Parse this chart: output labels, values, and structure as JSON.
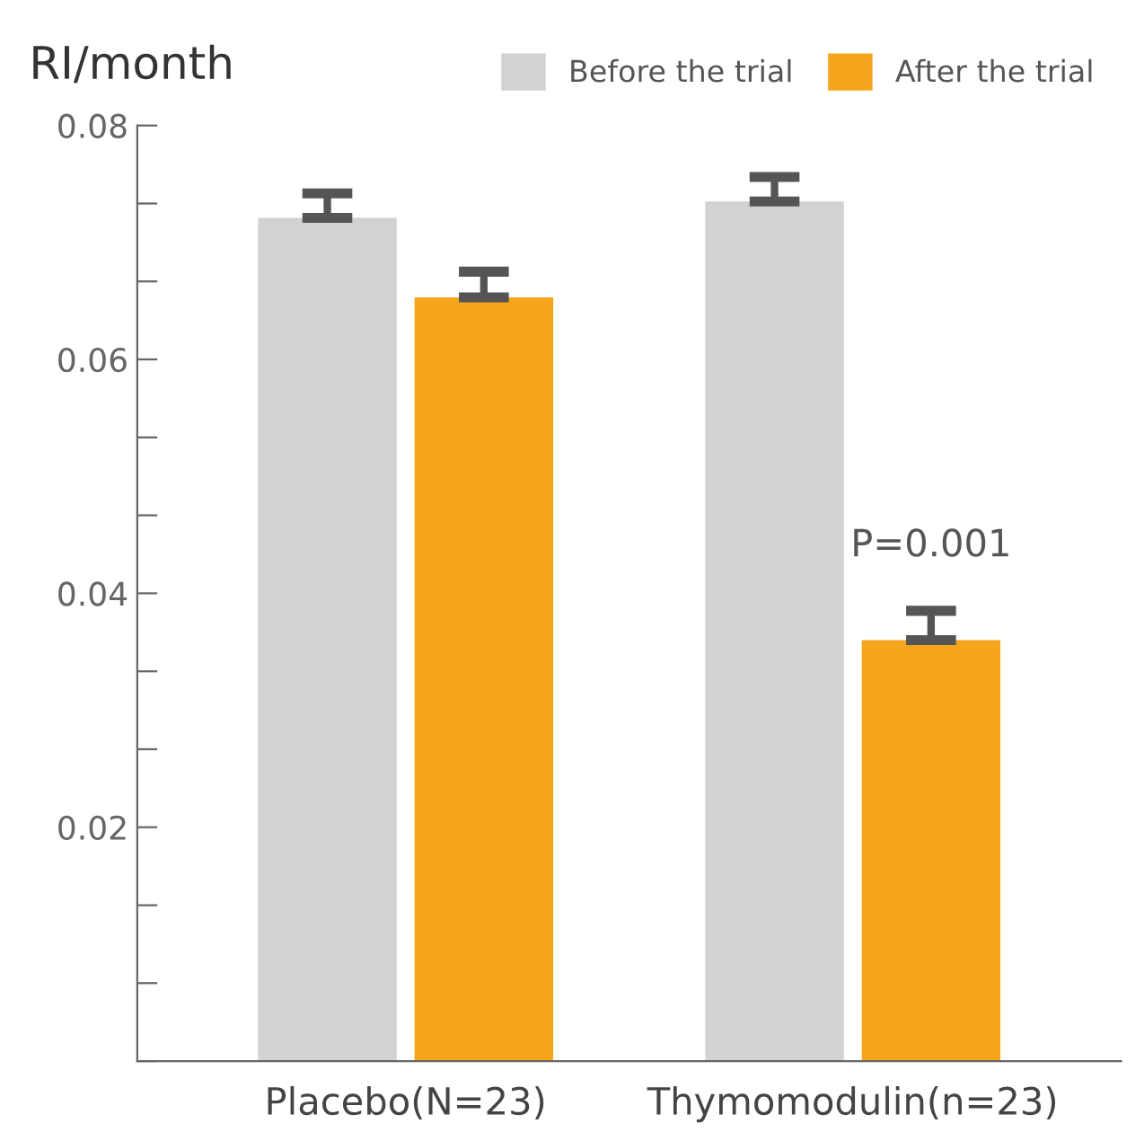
{
  "chart_data": {
    "type": "bar",
    "ylabel": "RI/month",
    "categories": [
      "Placebo(N=23)",
      "Thymomodulin(n=23)"
    ],
    "series": [
      {
        "name": "Before the trial",
        "color": "#d1d2d4",
        "values": [
          0.0721,
          0.0735
        ],
        "errors": [
          [
            0.0721,
            0.0742
          ],
          [
            0.0735,
            0.0756
          ]
        ]
      },
      {
        "name": "After the trial",
        "color": "#f6a41c",
        "values": [
          0.0653,
          0.036
        ],
        "errors": [
          [
            0.0653,
            0.0675
          ],
          [
            0.036,
            0.0385
          ]
        ]
      }
    ],
    "annotations": [
      "P=0.001"
    ],
    "ylim": [
      0,
      0.08
    ],
    "yticks": [
      {
        "value": 0,
        "label": null
      },
      {
        "value": 0.00667,
        "label": null
      },
      {
        "value": 0.01333,
        "label": null
      },
      0.02,
      {
        "value": 0.02667,
        "label": null
      },
      {
        "value": 0.03333,
        "label": null
      },
      0.04,
      {
        "value": 0.04667,
        "label": null
      },
      {
        "value": 0.05333,
        "label": null
      },
      0.06,
      {
        "value": 0.06667,
        "label": null
      },
      {
        "value": 0.07333,
        "label": null
      },
      0.08
    ],
    "grid": false,
    "legend": "top right"
  }
}
